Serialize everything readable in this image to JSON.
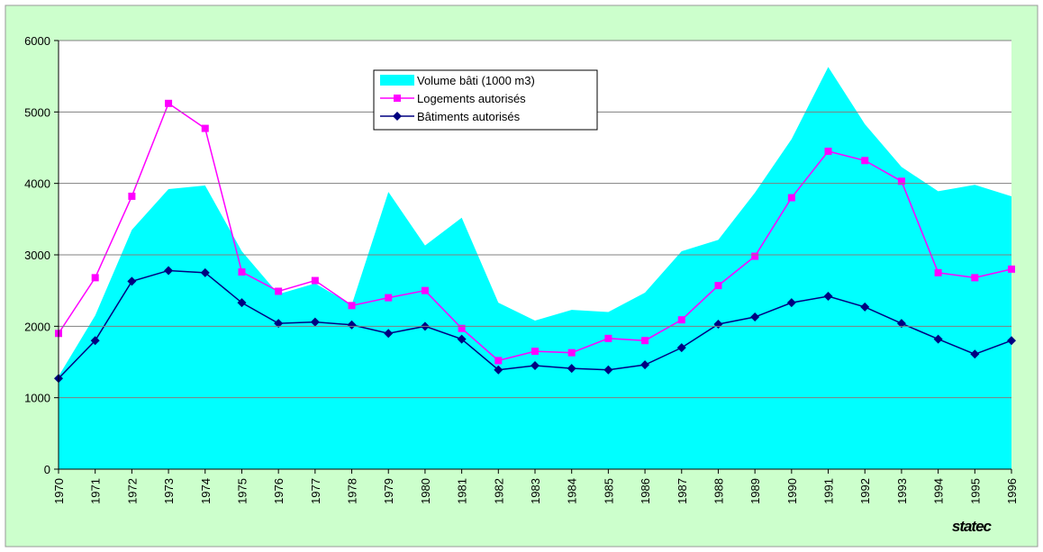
{
  "chart_data": {
    "type": "line",
    "categories": [
      "1970",
      "1971",
      "1972",
      "1973",
      "1974",
      "1975",
      "1976",
      "1977",
      "1978",
      "1979",
      "1980",
      "1981",
      "1982",
      "1983",
      "1984",
      "1985",
      "1986",
      "1987",
      "1988",
      "1989",
      "1990",
      "1991",
      "1992",
      "1993",
      "1994",
      "1995",
      "1996"
    ],
    "series": [
      {
        "name": "Volume bâti (1000 m3)",
        "style": "area",
        "color": "#00ffff",
        "values": [
          1300,
          2150,
          3350,
          3920,
          3970,
          3050,
          2450,
          2600,
          2300,
          3880,
          3130,
          3520,
          2330,
          2080,
          2230,
          2200,
          2470,
          3050,
          3210,
          3870,
          4620,
          5630,
          4830,
          4230,
          3890,
          3980,
          3820
        ]
      },
      {
        "name": "Logements autorisés",
        "style": "line",
        "marker": "square",
        "color": "#ff00ff",
        "values": [
          1900,
          2680,
          3820,
          5120,
          4770,
          2760,
          2490,
          2640,
          2290,
          2400,
          2500,
          1970,
          1520,
          1650,
          1630,
          1830,
          1800,
          2090,
          2570,
          2980,
          3800,
          4450,
          4320,
          4030,
          2750,
          2680,
          2800
        ]
      },
      {
        "name": "Bâtiments autorisés",
        "style": "line",
        "marker": "diamond",
        "color": "#000080",
        "values": [
          1270,
          1800,
          2630,
          2780,
          2750,
          2330,
          2040,
          2060,
          2020,
          1900,
          2000,
          1820,
          1390,
          1450,
          1410,
          1390,
          1460,
          1700,
          2030,
          2130,
          2330,
          2420,
          2270,
          2040,
          1820,
          1610,
          1800
        ]
      }
    ],
    "ylim": [
      0,
      6000
    ],
    "yticks": [
      0,
      1000,
      2000,
      3000,
      4000,
      5000,
      6000
    ],
    "grid": true,
    "legend_position": "top-center",
    "watermark": "statec"
  }
}
